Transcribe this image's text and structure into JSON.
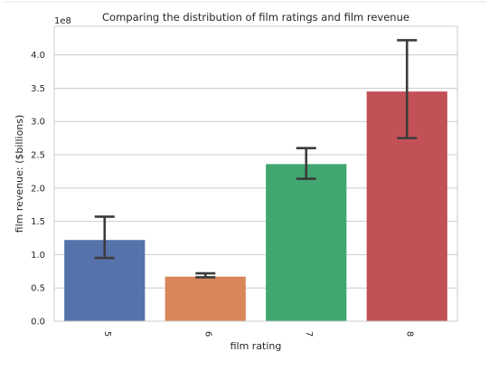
{
  "chart_data": {
    "type": "bar",
    "title": "Comparing the distribution of film ratings and film revenue",
    "xlabel": "film rating",
    "ylabel": "film revenue: ($billions)",
    "y_offset_text": "1e8",
    "y_scale": 100000000,
    "categories": [
      "5",
      "6",
      "7",
      "8"
    ],
    "values": [
      1.22,
      0.67,
      2.36,
      3.45
    ],
    "error_low": [
      0.95,
      0.66,
      2.14,
      2.75
    ],
    "error_high": [
      1.57,
      0.72,
      2.6,
      4.22
    ],
    "bar_colors": [
      "#5572ab",
      "#d9875a",
      "#41a66f",
      "#c25157"
    ],
    "error_bar_color": "#3c3c3c",
    "ylim": [
      0,
      4.43
    ],
    "yticks": [
      0.0,
      0.5,
      1.0,
      1.5,
      2.0,
      2.5,
      3.0,
      3.5,
      4.0
    ],
    "ytick_labels": [
      "0.0",
      "0.5",
      "1.0",
      "1.5",
      "2.0",
      "2.5",
      "3.0",
      "3.5",
      "4.0"
    ],
    "xtick_rotation": -90,
    "grid": "y",
    "legend": "none"
  }
}
